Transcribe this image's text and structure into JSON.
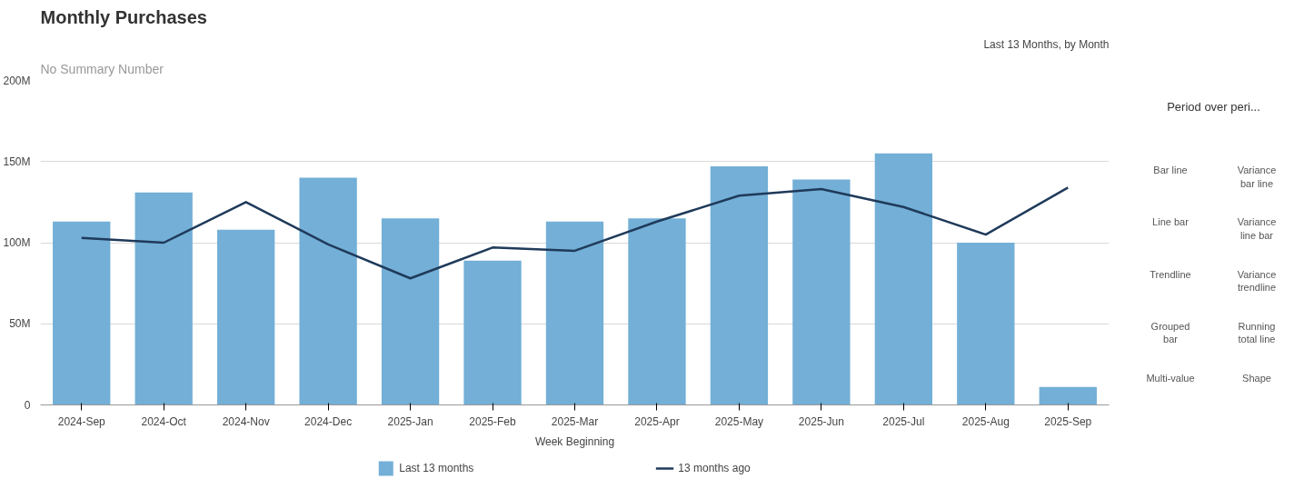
{
  "chart_data": {
    "type": "bar",
    "title": "Monthly Purchases",
    "subtitle": "Last 13 Months, by Month",
    "xlabel": "Week Beginning",
    "categories": [
      "2024-Sep",
      "2024-Oct",
      "2024-Nov",
      "2024-Dec",
      "2025-Jan",
      "2025-Feb",
      "2025-Mar",
      "2025-Apr",
      "2025-May",
      "2025-Jun",
      "2025-Jul",
      "2025-Aug",
      "2025-Sep"
    ],
    "series": [
      {
        "name": "Last 13 months",
        "color": "#73afd6",
        "values": [
          113,
          131,
          108,
          140,
          115,
          89,
          113,
          115,
          147,
          139,
          155,
          100,
          11
        ]
      },
      {
        "name": "13 months ago",
        "type": "line",
        "color": "#1f3a5a",
        "values": [
          103,
          100,
          125,
          99,
          78,
          97,
          95,
          113,
          129,
          133,
          122,
          105,
          134
        ]
      }
    ],
    "ylim": [
      0,
      200
    ],
    "yticks": [
      {
        "value": 0,
        "label": "0"
      },
      {
        "value": 50,
        "label": "50M"
      },
      {
        "value": 100,
        "label": "100M"
      },
      {
        "value": 150,
        "label": "150M"
      },
      {
        "value": 200,
        "label": "200M"
      }
    ],
    "grid": "y",
    "legend": "bottom",
    "annotations": [
      "No Summary Number",
      "Period over peri...",
      "Bar line",
      "Variance bar line",
      "Line bar",
      "Variance line bar",
      "Trendline",
      "Variance trendline",
      "Grouped bar",
      "Running total line",
      "Multi-value",
      "Shape"
    ]
  }
}
